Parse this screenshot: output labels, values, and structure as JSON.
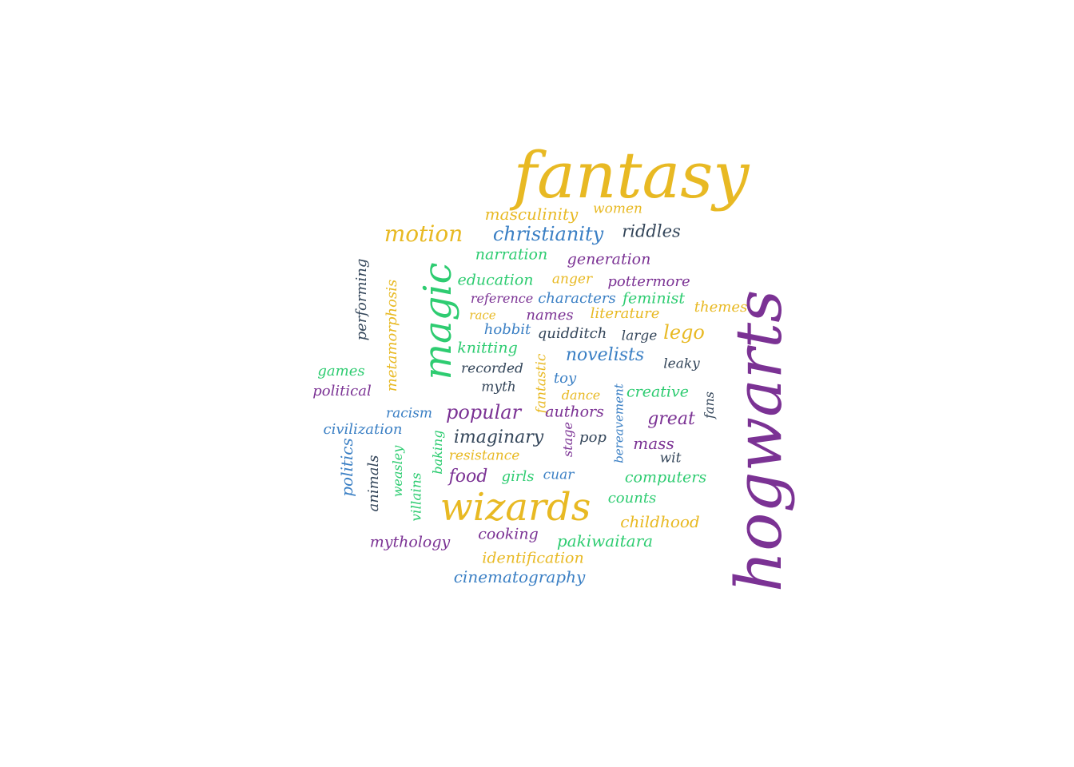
{
  "palette": {
    "gold": "#E8B923",
    "purple": "#7B3294",
    "green": "#2ECC71",
    "blue": "#3A7FC4",
    "navy": "#34465A"
  },
  "words": [
    {
      "text": "fantasy",
      "color": "gold"
    },
    {
      "text": "hogwarts",
      "color": "purple"
    },
    {
      "text": "magic",
      "color": "green"
    },
    {
      "text": "wizards",
      "color": "gold"
    },
    {
      "text": "motion",
      "color": "gold"
    },
    {
      "text": "christianity",
      "color": "blue"
    },
    {
      "text": "riddles",
      "color": "navy"
    },
    {
      "text": "masculinity",
      "color": "gold"
    },
    {
      "text": "women",
      "color": "gold"
    },
    {
      "text": "narration",
      "color": "green"
    },
    {
      "text": "generation",
      "color": "purple"
    },
    {
      "text": "performing",
      "color": "navy"
    },
    {
      "text": "metamorphosis",
      "color": "gold"
    },
    {
      "text": "education",
      "color": "green"
    },
    {
      "text": "anger",
      "color": "gold"
    },
    {
      "text": "pottermore",
      "color": "purple"
    },
    {
      "text": "reference",
      "color": "purple"
    },
    {
      "text": "characters",
      "color": "blue"
    },
    {
      "text": "feminist",
      "color": "green"
    },
    {
      "text": "themes",
      "color": "gold"
    },
    {
      "text": "race",
      "color": "gold"
    },
    {
      "text": "names",
      "color": "purple"
    },
    {
      "text": "literature",
      "color": "gold"
    },
    {
      "text": "hobbit",
      "color": "blue"
    },
    {
      "text": "quidditch",
      "color": "navy"
    },
    {
      "text": "large",
      "color": "navy"
    },
    {
      "text": "lego",
      "color": "gold"
    },
    {
      "text": "knitting",
      "color": "green"
    },
    {
      "text": "novelists",
      "color": "blue"
    },
    {
      "text": "recorded",
      "color": "navy"
    },
    {
      "text": "fantastic",
      "color": "gold"
    },
    {
      "text": "leaky",
      "color": "navy"
    },
    {
      "text": "games",
      "color": "green"
    },
    {
      "text": "political",
      "color": "purple"
    },
    {
      "text": "toy",
      "color": "blue"
    },
    {
      "text": "myth",
      "color": "navy"
    },
    {
      "text": "dance",
      "color": "gold"
    },
    {
      "text": "creative",
      "color": "green"
    },
    {
      "text": "bereavement",
      "color": "blue"
    },
    {
      "text": "fans",
      "color": "navy"
    },
    {
      "text": "racism",
      "color": "blue"
    },
    {
      "text": "popular",
      "color": "purple"
    },
    {
      "text": "authors",
      "color": "purple"
    },
    {
      "text": "great",
      "color": "purple"
    },
    {
      "text": "civilization",
      "color": "blue"
    },
    {
      "text": "imaginary",
      "color": "navy"
    },
    {
      "text": "stage",
      "color": "purple"
    },
    {
      "text": "pop",
      "color": "navy"
    },
    {
      "text": "mass",
      "color": "purple"
    },
    {
      "text": "baking",
      "color": "green"
    },
    {
      "text": "politics",
      "color": "blue"
    },
    {
      "text": "animals",
      "color": "navy"
    },
    {
      "text": "weasley",
      "color": "green"
    },
    {
      "text": "resistance",
      "color": "gold"
    },
    {
      "text": "wit",
      "color": "navy"
    },
    {
      "text": "villains",
      "color": "green"
    },
    {
      "text": "food",
      "color": "purple"
    },
    {
      "text": "girls",
      "color": "green"
    },
    {
      "text": "cuar",
      "color": "blue"
    },
    {
      "text": "computers",
      "color": "green"
    },
    {
      "text": "counts",
      "color": "green"
    },
    {
      "text": "childhood",
      "color": "gold"
    },
    {
      "text": "cooking",
      "color": "purple"
    },
    {
      "text": "pakiwaitara",
      "color": "green"
    },
    {
      "text": "mythology",
      "color": "purple"
    },
    {
      "text": "identification",
      "color": "gold"
    },
    {
      "text": "cinematography",
      "color": "blue"
    }
  ]
}
